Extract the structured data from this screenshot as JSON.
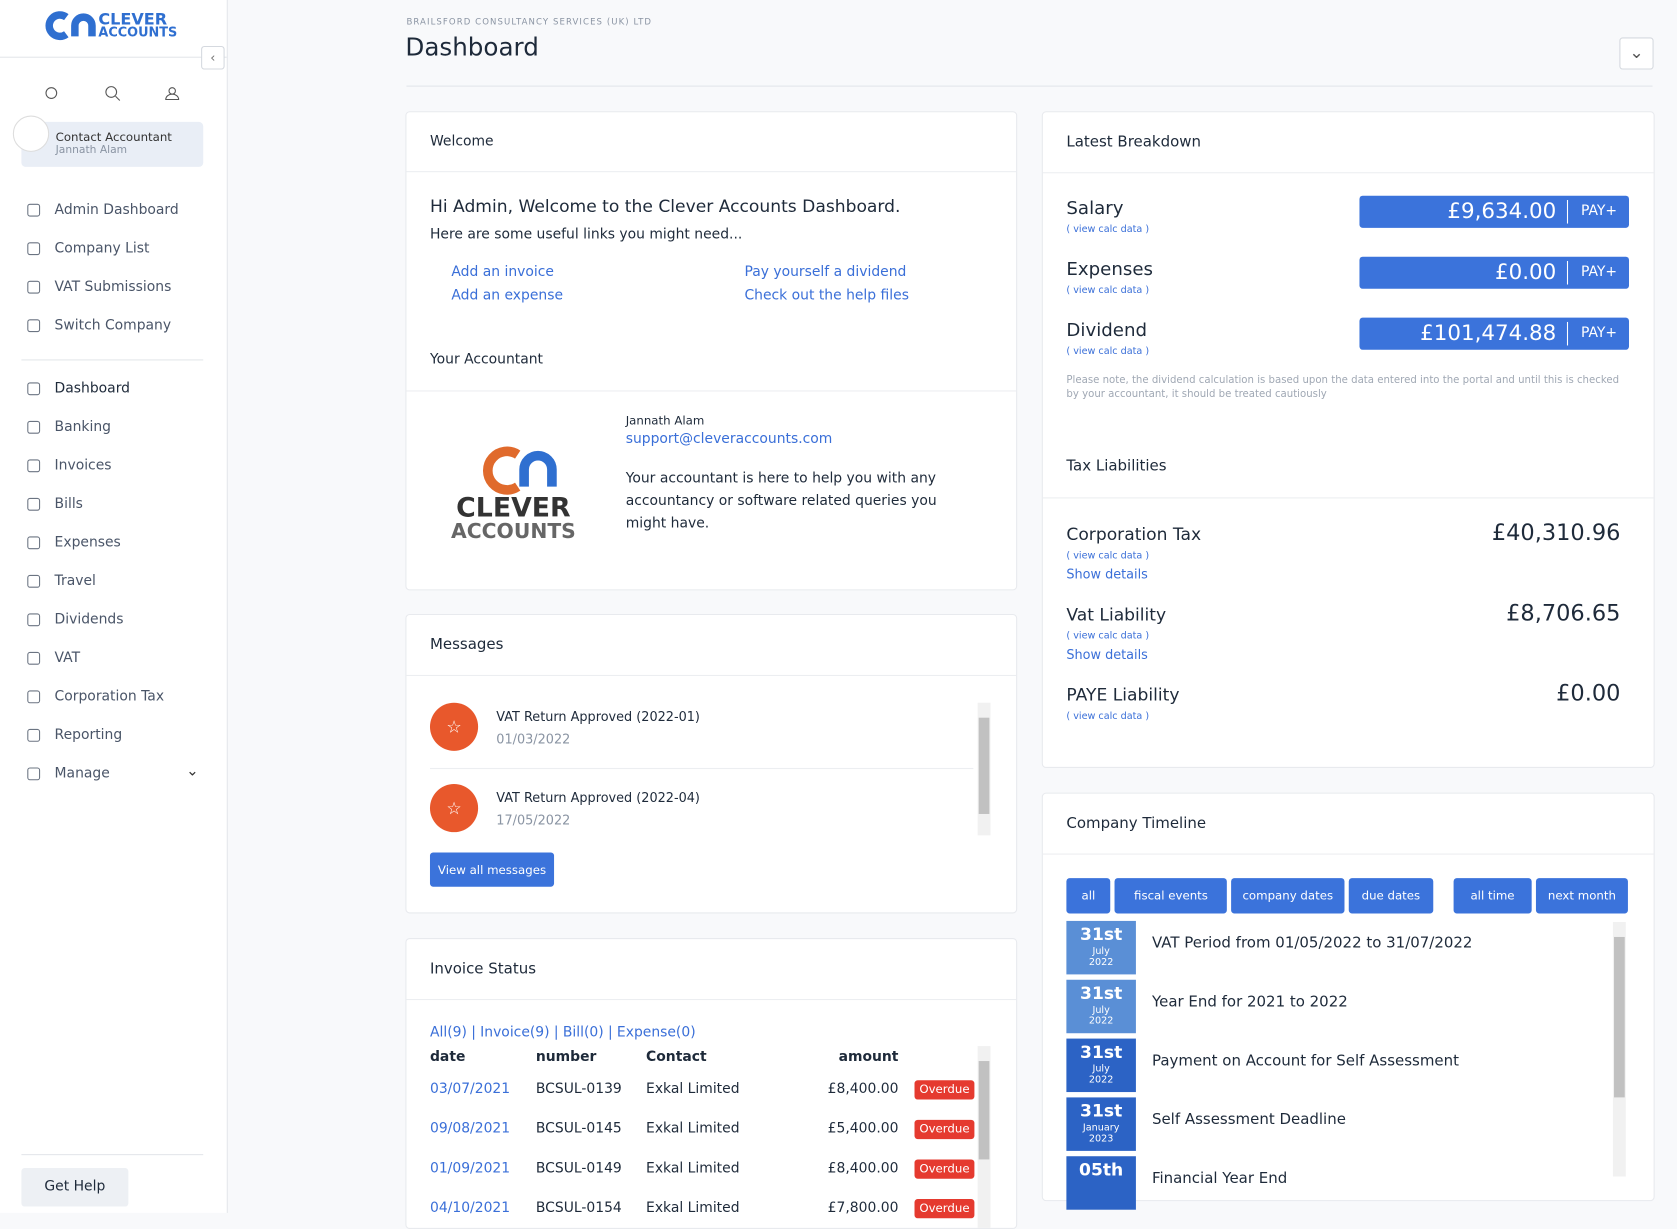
{
  "logo": {
    "line1": "CLEVER",
    "line2": "ACCOUNTS"
  },
  "sidebar": {
    "contact": {
      "title": "Contact Accountant",
      "name": "Jannath Alam"
    },
    "nav1": [
      "Admin Dashboard",
      "Company List",
      "VAT Submissions",
      "Switch Company"
    ],
    "nav2": [
      "Dashboard",
      "Banking",
      "Invoices",
      "Bills",
      "Expenses",
      "Travel",
      "Dividends",
      "VAT",
      "Corporation Tax",
      "Reporting",
      "Manage"
    ],
    "help": "Get Help"
  },
  "header": {
    "company": "BRAILSFORD CONSULTANCY SERVICES (UK) LTD",
    "title": "Dashboard"
  },
  "welcome": {
    "title": "Welcome",
    "heading": "Hi Admin, Welcome to the Clever Accounts Dashboard.",
    "sub": "Here are some useful links you might need...",
    "links": [
      "Add an invoice",
      "Pay yourself a dividend",
      "Add an expense",
      "Check out the help files"
    ],
    "accountant_title": "Your Accountant",
    "accountant_name": "Jannath Alam",
    "accountant_email": "support@cleveraccounts.com",
    "accountant_text": "Your accountant is here to help you with any accountancy or software related queries you might have."
  },
  "messages": {
    "title": "Messages",
    "items": [
      {
        "title": "VAT Return Approved (2022-01)",
        "date": "01/03/2022"
      },
      {
        "title": "VAT Return Approved (2022-04)",
        "date": "17/05/2022"
      }
    ],
    "button": "View all messages"
  },
  "invoices": {
    "title": "Invoice Status",
    "filters": [
      "All(9)",
      "Invoice(9)",
      "Bill(0)",
      "Expense(0)"
    ],
    "separator": "|",
    "columns": [
      "date",
      "number",
      "Contact",
      "amount"
    ],
    "rows": [
      [
        "03/07/2021",
        "BCSUL-0139",
        "Exkal Limited",
        "£8,400.00",
        "Overdue"
      ],
      [
        "09/08/2021",
        "BCSUL-0145",
        "Exkal Limited",
        "£5,400.00",
        "Overdue"
      ],
      [
        "01/09/2021",
        "BCSUL-0149",
        "Exkal Limited",
        "£8,400.00",
        "Overdue"
      ],
      [
        "04/10/2021",
        "BCSUL-0154",
        "Exkal Limited",
        "£7,800.00",
        "Overdue"
      ]
    ]
  },
  "breakdown": {
    "title": "Latest Breakdown",
    "items": [
      {
        "label": "Salary",
        "link": "( view calc data )",
        "value": "£9,634.00",
        "button": "PAY+"
      },
      {
        "label": "Expenses",
        "link": "( view calc data )",
        "value": "£0.00",
        "button": "PAY+"
      },
      {
        "label": "Dividend",
        "link": "( view calc data )",
        "value": "£101,474.88",
        "button": "PAY+"
      }
    ],
    "note": "Please note, the dividend calculation is based upon the data entered into the portal and until this is checked by your accountant, it should be treated cautiously"
  },
  "tax": {
    "title": "Tax Liabilities",
    "items": [
      {
        "label": "Corporation Tax",
        "link": "( view calc data )",
        "details": "Show details",
        "value": "£40,310.96"
      },
      {
        "label": "Vat Liability",
        "link": "( view calc data )",
        "details": "Show details",
        "value": "£8,706.65"
      },
      {
        "label": "PAYE Liability",
        "link": "( view calc data )",
        "value": "£0.00"
      }
    ]
  },
  "timeline": {
    "title": "Company Timeline",
    "filters": [
      "all",
      "fiscal events",
      "company dates",
      "due dates"
    ],
    "ranges": [
      "all time",
      "next month"
    ],
    "events": [
      {
        "day": "31st",
        "month": "July",
        "year": "2022",
        "text": "VAT Period from 01/05/2022 to 31/07/2022"
      },
      {
        "day": "31st",
        "month": "July",
        "year": "2022",
        "text": "Year End for 2021 to 2022"
      },
      {
        "day": "31st",
        "month": "July",
        "year": "2022",
        "text": "Payment on Account for Self Assessment"
      },
      {
        "day": "31st",
        "month": "January",
        "year": "2023",
        "text": "Self Assessment Deadline"
      },
      {
        "day": "05th",
        "text": "Financial Year End"
      }
    ]
  }
}
